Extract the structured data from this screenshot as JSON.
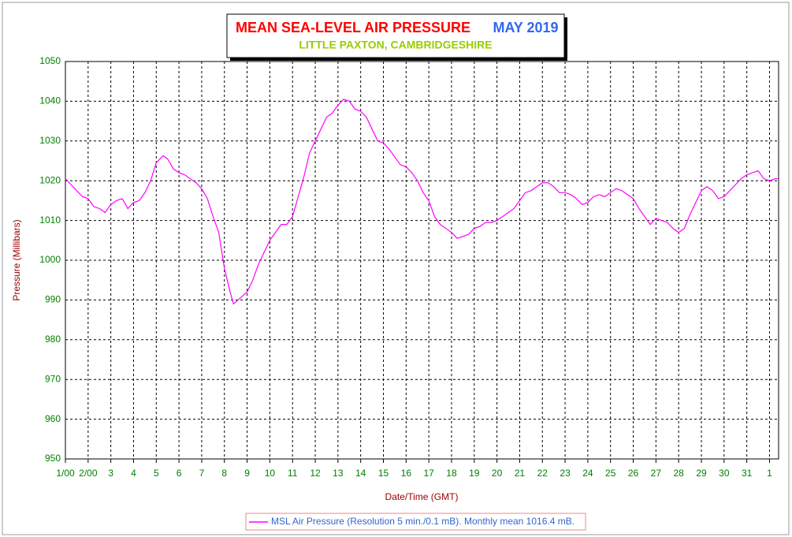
{
  "chart_data": {
    "type": "line",
    "title": "MEAN SEA-LEVEL AIR PRESSURE",
    "title_month": "MAY 2019",
    "subtitle": "LITTLE PAXTON, CAMBRIDGESHIRE",
    "xlabel": "Date/Time (GMT)",
    "ylabel": "Pressure (Millibars)",
    "xlim": [
      0,
      31.4
    ],
    "ylim": [
      950,
      1050
    ],
    "grid": true,
    "yticks": [
      950,
      960,
      970,
      980,
      990,
      1000,
      1010,
      1020,
      1030,
      1040,
      1050
    ],
    "xticks": [
      {
        "value": 0,
        "label": "1/00"
      },
      {
        "value": 1,
        "label": "2/00"
      },
      {
        "value": 2,
        "label": "3"
      },
      {
        "value": 3,
        "label": "4"
      },
      {
        "value": 4,
        "label": "5"
      },
      {
        "value": 5,
        "label": "6"
      },
      {
        "value": 6,
        "label": "7"
      },
      {
        "value": 7,
        "label": "8"
      },
      {
        "value": 8,
        "label": "9"
      },
      {
        "value": 9,
        "label": "10"
      },
      {
        "value": 10,
        "label": "11"
      },
      {
        "value": 11,
        "label": "12"
      },
      {
        "value": 12,
        "label": "13"
      },
      {
        "value": 13,
        "label": "14"
      },
      {
        "value": 14,
        "label": "15"
      },
      {
        "value": 15,
        "label": "16"
      },
      {
        "value": 16,
        "label": "17"
      },
      {
        "value": 17,
        "label": "18"
      },
      {
        "value": 18,
        "label": "19"
      },
      {
        "value": 19,
        "label": "20"
      },
      {
        "value": 20,
        "label": "21"
      },
      {
        "value": 21,
        "label": "22"
      },
      {
        "value": 22,
        "label": "23"
      },
      {
        "value": 23,
        "label": "24"
      },
      {
        "value": 24,
        "label": "25"
      },
      {
        "value": 25,
        "label": "26"
      },
      {
        "value": 26,
        "label": "27"
      },
      {
        "value": 27,
        "label": "28"
      },
      {
        "value": 28,
        "label": "29"
      },
      {
        "value": 29,
        "label": "30"
      },
      {
        "value": 30,
        "label": "31"
      },
      {
        "value": 31,
        "label": "1"
      }
    ],
    "x": [
      0,
      0.25,
      0.5,
      0.75,
      1,
      1.25,
      1.5,
      1.75,
      2,
      2.25,
      2.5,
      2.75,
      3,
      3.25,
      3.5,
      3.75,
      4,
      4.3,
      4.5,
      4.75,
      5,
      5.25,
      5.5,
      5.75,
      6,
      6.25,
      6.5,
      6.75,
      7,
      7.25,
      7.4,
      7.6,
      7.9,
      8,
      8.25,
      8.5,
      8.75,
      9,
      9.25,
      9.5,
      9.75,
      10,
      10.25,
      10.5,
      10.75,
      11,
      11.25,
      11.5,
      11.75,
      12,
      12.25,
      12.5,
      12.75,
      13,
      13.25,
      13.5,
      13.75,
      14,
      14.25,
      14.5,
      14.75,
      15,
      15.25,
      15.5,
      15.75,
      16,
      16.25,
      16.5,
      16.75,
      17,
      17.25,
      17.5,
      17.75,
      18,
      18.25,
      18.5,
      18.75,
      19,
      19.25,
      19.5,
      19.75,
      20,
      20.25,
      20.5,
      20.75,
      21,
      21.25,
      21.5,
      21.75,
      22,
      22.25,
      22.5,
      22.75,
      23,
      23.25,
      23.5,
      23.75,
      24,
      24.25,
      24.5,
      24.75,
      25,
      25.25,
      25.5,
      25.75,
      26,
      26.25,
      26.5,
      26.75,
      27,
      27.25,
      27.5,
      27.75,
      28,
      28.25,
      28.5,
      28.75,
      29,
      29.25,
      29.5,
      29.75,
      30,
      30.25,
      30.5,
      30.75,
      31,
      31.25,
      31.4
    ],
    "series": [
      {
        "name": "MSL Air Pressure (Resolution 5 min./0.1 mB). Monthly mean 1016.4 mB.",
        "color": "#ff00ff",
        "values": [
          1020.5,
          1019,
          1017.5,
          1016,
          1015.5,
          1013.5,
          1013,
          1012,
          1014,
          1015,
          1015.5,
          1013,
          1014.5,
          1015,
          1017,
          1020,
          1024.5,
          1026.3,
          1025.5,
          1023,
          1022,
          1021.5,
          1020.5,
          1019.5,
          1018,
          1015.5,
          1011,
          1007,
          998,
          992,
          989,
          990,
          991.5,
          992,
          995,
          999,
          1002,
          1005,
          1007,
          1009,
          1009,
          1011,
          1016,
          1021,
          1027,
          1030,
          1033,
          1036,
          1037,
          1039,
          1040.5,
          1040,
          1038,
          1037.5,
          1036,
          1033,
          1030,
          1029.5,
          1028,
          1026,
          1024,
          1023.5,
          1022,
          1020,
          1017,
          1015,
          1011,
          1009,
          1008,
          1007,
          1005.5,
          1006,
          1006.5,
          1008,
          1008.5,
          1009.5,
          1009.5,
          1010,
          1011,
          1012,
          1013,
          1015,
          1017,
          1017.5,
          1018.5,
          1019.5,
          1019.5,
          1018.5,
          1017,
          1017,
          1016.5,
          1015.5,
          1014,
          1014.5,
          1016,
          1016.5,
          1016,
          1017,
          1018,
          1017.5,
          1016.5,
          1015.5,
          1013,
          1011,
          1009,
          1010.5,
          1010,
          1009.5,
          1008,
          1007,
          1008,
          1011.5,
          1014.5,
          1017.5,
          1018.5,
          1017.5,
          1015.5,
          1016,
          1017.5,
          1019,
          1020.5,
          1021.5,
          1022,
          1022.5,
          1020.5,
          1020,
          1020.5,
          1020.5
        ]
      }
    ]
  }
}
